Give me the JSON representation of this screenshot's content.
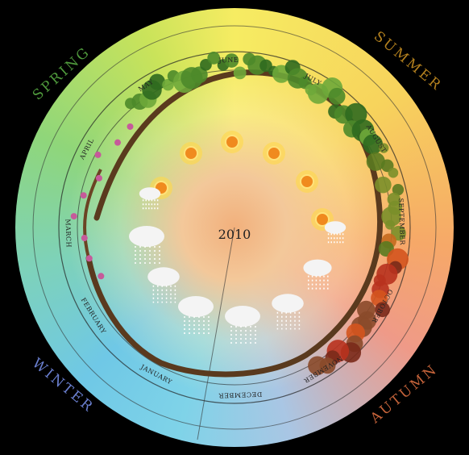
{
  "seasons": {
    "spring": "SPRING",
    "summer": "SUMMER",
    "autumn": "AUTUMN",
    "winter": "WINTER"
  },
  "year": "2010",
  "months": [
    "JANUARY",
    "FEBRUARY",
    "MARCH",
    "APRIL",
    "MAY",
    "JUNE",
    "JULY",
    "AUGUST",
    "SEPTEMBER",
    "OCTOBER",
    "NOVEMBER",
    "DECEMBER"
  ]
}
